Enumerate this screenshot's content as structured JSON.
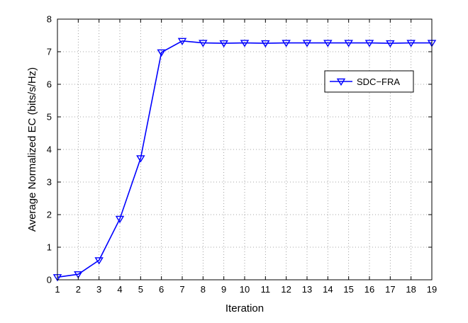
{
  "chart_data": {
    "type": "line",
    "title": "",
    "xlabel": "Iteration",
    "ylabel": "Average Normalized  EC (bits/s/Hz)",
    "xlim": [
      1,
      19
    ],
    "ylim": [
      0,
      8
    ],
    "xticks": [
      1,
      2,
      3,
      4,
      5,
      6,
      7,
      8,
      9,
      10,
      11,
      12,
      13,
      14,
      15,
      16,
      17,
      18,
      19
    ],
    "yticks": [
      0,
      1,
      2,
      3,
      4,
      5,
      6,
      7,
      8
    ],
    "grid": true,
    "legend_position": "upper-right",
    "series": [
      {
        "name": "SDC−FRA",
        "color": "#0000ff",
        "marker": "triangle-down",
        "x": [
          1,
          2,
          3,
          4,
          5,
          6,
          7,
          8,
          9,
          10,
          11,
          12,
          13,
          14,
          15,
          16,
          17,
          18,
          19
        ],
        "y": [
          0.08,
          0.17,
          0.6,
          1.87,
          3.73,
          6.98,
          7.33,
          7.27,
          7.26,
          7.27,
          7.26,
          7.27,
          7.27,
          7.27,
          7.27,
          7.27,
          7.26,
          7.27,
          7.27
        ]
      }
    ]
  }
}
